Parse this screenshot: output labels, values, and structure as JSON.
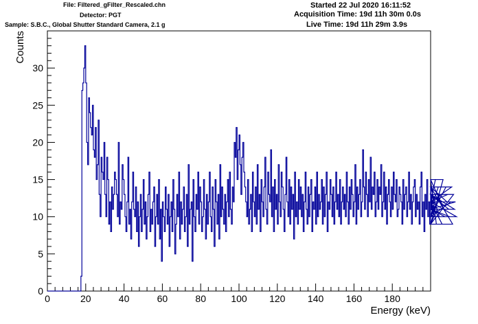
{
  "header": {
    "file": "File: Filtered_gFilter_Rescaled.chn",
    "detector": "Detector: PGT",
    "sample": "Sample: S.B.C., Global Shutter Standard Camera, 2.1 g",
    "started": "Started 22 Jul 2020 16:11:52",
    "acquisition_time": "Acquisition Time: 19d 11h 30m 0.0s",
    "live_time": "Live Time: 19d 11h 29m 3.9s"
  },
  "colors": {
    "series": "#000099",
    "axis": "#000000",
    "background": "#ffffff"
  },
  "chart_data": {
    "type": "line",
    "xlabel": "Energy (keV)",
    "ylabel": "Counts",
    "xlim": [
      0,
      200
    ],
    "ylim": [
      0,
      35
    ],
    "xticks": [
      0,
      20,
      40,
      60,
      80,
      100,
      120,
      140,
      160,
      180
    ],
    "yticks": [
      0,
      5,
      10,
      15,
      20,
      25,
      30
    ],
    "grid": false,
    "bin_width_keV": 0.5,
    "series": [
      {
        "x_start": 0,
        "values": [
          0,
          0,
          0,
          0,
          0,
          0,
          0,
          0,
          0,
          0,
          0,
          0,
          0,
          0,
          0,
          0,
          0,
          0,
          0,
          0,
          0,
          0,
          0,
          0,
          0,
          0,
          0,
          0,
          0,
          0,
          0,
          0,
          0,
          0,
          0,
          2,
          27,
          28,
          30,
          33,
          28,
          20,
          17,
          26,
          24,
          22,
          21,
          25,
          19,
          18,
          22,
          15,
          17,
          23,
          13,
          10,
          18,
          16,
          15,
          20,
          13,
          10,
          18,
          15,
          9,
          12,
          8,
          14,
          11,
          13,
          16,
          15,
          13,
          10,
          20,
          9,
          12,
          11,
          17,
          15,
          13,
          10,
          8,
          12,
          18,
          9,
          11,
          7,
          12,
          16,
          11,
          10,
          14,
          8,
          12,
          6,
          10,
          13,
          8,
          11,
          15,
          9,
          12,
          7,
          10,
          13,
          16,
          8,
          11,
          9,
          12,
          14,
          6,
          10,
          13,
          9,
          15,
          7,
          11,
          4,
          12,
          10,
          8,
          14,
          11,
          9,
          13,
          6,
          10,
          12,
          8,
          15,
          11,
          5,
          9,
          13,
          10,
          16,
          7,
          12,
          9,
          11,
          14,
          8,
          10,
          13,
          6,
          17,
          9,
          11,
          12,
          4,
          15,
          10,
          8,
          13,
          11,
          16,
          9,
          14,
          12,
          8,
          10,
          15,
          11,
          7,
          13,
          9,
          12,
          16,
          10,
          8,
          14,
          11,
          6,
          15,
          12,
          9,
          13,
          7,
          17,
          10,
          14,
          11,
          9,
          13,
          8,
          12,
          15,
          10,
          16,
          11,
          9,
          14,
          12,
          20,
          18,
          22,
          15,
          19,
          21,
          17,
          13,
          18,
          20,
          16,
          14,
          12,
          10,
          15,
          9,
          11,
          13,
          8,
          16,
          12,
          10,
          14,
          9,
          17,
          11,
          13,
          8,
          15,
          12,
          10,
          14,
          18,
          11,
          9,
          16,
          13,
          12,
          19,
          10,
          14,
          8,
          15,
          11,
          13,
          9,
          17,
          12,
          10,
          16,
          14,
          11,
          8,
          13,
          18,
          12,
          10,
          15,
          9,
          14,
          11,
          13,
          7,
          16,
          10,
          12,
          9,
          15,
          11,
          14,
          10,
          13,
          8,
          12,
          16,
          11,
          9,
          14,
          10,
          13,
          15,
          8,
          12,
          11,
          14,
          9,
          16,
          10,
          13,
          11,
          12,
          15,
          9,
          14,
          10,
          13,
          16,
          8,
          12,
          11,
          15,
          13,
          10,
          14,
          9,
          12,
          16,
          11,
          13,
          10,
          15,
          9,
          12,
          14,
          11,
          13,
          10,
          16,
          12,
          9,
          14,
          11,
          15,
          13,
          10,
          12,
          17,
          9,
          14,
          11,
          13,
          15,
          10,
          12,
          19,
          14,
          11,
          16,
          13,
          10,
          15,
          12,
          18,
          11,
          14,
          13,
          16,
          10,
          12,
          15,
          11,
          14,
          13,
          17,
          10,
          12,
          16,
          11,
          14,
          9,
          13,
          15,
          12,
          10,
          14,
          11,
          16,
          13,
          12,
          15,
          10,
          11,
          14,
          13,
          12,
          9,
          15,
          11,
          13,
          14,
          10,
          12,
          16,
          11,
          13,
          9,
          12,
          14,
          15,
          10,
          13,
          11,
          12,
          9,
          14,
          16,
          10,
          12,
          8,
          13,
          11,
          15,
          10,
          12,
          9,
          14,
          11,
          13,
          10,
          12,
          15,
          9,
          11,
          14,
          10,
          13,
          12,
          9,
          15,
          11,
          10,
          14,
          12,
          13,
          11,
          10,
          12,
          14,
          9,
          13,
          11,
          12,
          10
        ]
      }
    ]
  }
}
